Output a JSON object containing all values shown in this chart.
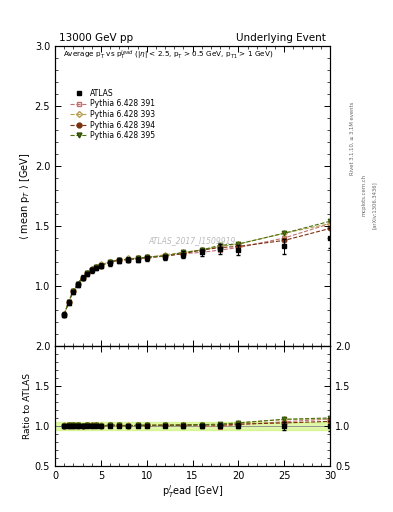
{
  "title_left": "13000 GeV pp",
  "title_right": "Underlying Event",
  "xlabel": "p$_{T}^{l}$ead [GeV]",
  "ylabel_main": "$\\langle$ mean p$_{T}$ $\\rangle$ [GeV]",
  "ylabel_ratio": "Ratio to ATLAS",
  "annotation_main": "Average p$_{T}$ vs p$_{T}^{lead}$ ($|\\eta|$ < 2.5, p$_{T}$ > 0.5 GeV, p$_{T1}$ > 1 GeV)",
  "watermark": "ATLAS_2017_I1509919",
  "rivet_label": "Rivet 3.1.10, ≥ 3.1M events",
  "arxiv_label": "[arXiv:1306.3436]",
  "mcplots_label": "mcplots.cern.ch",
  "ylim_main": [
    0.5,
    3.0
  ],
  "ylim_ratio": [
    0.5,
    2.0
  ],
  "xlim": [
    0,
    30
  ],
  "yticks_main": [
    1.0,
    1.5,
    2.0,
    2.5,
    3.0
  ],
  "yticks_ratio": [
    0.5,
    1.0,
    1.5,
    2.0
  ],
  "xticks": [
    0,
    5,
    10,
    15,
    20,
    25,
    30
  ],
  "atlas_x": [
    1.0,
    1.5,
    2.0,
    2.5,
    3.0,
    3.5,
    4.0,
    4.5,
    5.0,
    6.0,
    7.0,
    8.0,
    9.0,
    10.0,
    12.0,
    14.0,
    16.0,
    18.0,
    20.0,
    25.0,
    30.0
  ],
  "atlas_y": [
    0.76,
    0.86,
    0.95,
    1.01,
    1.07,
    1.1,
    1.13,
    1.15,
    1.17,
    1.19,
    1.21,
    1.22,
    1.22,
    1.23,
    1.24,
    1.26,
    1.28,
    1.31,
    1.3,
    1.33,
    1.4
  ],
  "atlas_yerr": [
    0.02,
    0.02,
    0.02,
    0.02,
    0.02,
    0.02,
    0.02,
    0.02,
    0.02,
    0.02,
    0.02,
    0.02,
    0.02,
    0.02,
    0.02,
    0.03,
    0.03,
    0.04,
    0.04,
    0.06,
    0.08
  ],
  "py391_x": [
    1.0,
    1.5,
    2.0,
    2.5,
    3.0,
    3.5,
    4.0,
    4.5,
    5.0,
    6.0,
    7.0,
    8.0,
    9.0,
    10.0,
    12.0,
    14.0,
    16.0,
    18.0,
    20.0,
    25.0,
    30.0
  ],
  "py391_y": [
    0.76,
    0.87,
    0.96,
    1.02,
    1.07,
    1.11,
    1.13,
    1.16,
    1.17,
    1.2,
    1.21,
    1.22,
    1.23,
    1.23,
    1.25,
    1.27,
    1.28,
    1.3,
    1.32,
    1.4,
    1.52
  ],
  "py393_x": [
    1.0,
    1.5,
    2.0,
    2.5,
    3.0,
    3.5,
    4.0,
    4.5,
    5.0,
    6.0,
    7.0,
    8.0,
    9.0,
    10.0,
    12.0,
    14.0,
    16.0,
    18.0,
    20.0,
    25.0,
    30.0
  ],
  "py393_y": [
    0.77,
    0.87,
    0.96,
    1.02,
    1.07,
    1.11,
    1.14,
    1.16,
    1.18,
    1.2,
    1.22,
    1.23,
    1.23,
    1.24,
    1.26,
    1.28,
    1.3,
    1.33,
    1.35,
    1.44,
    1.52
  ],
  "py394_x": [
    1.0,
    1.5,
    2.0,
    2.5,
    3.0,
    3.5,
    4.0,
    4.5,
    5.0,
    6.0,
    7.0,
    8.0,
    9.0,
    10.0,
    12.0,
    14.0,
    16.0,
    18.0,
    20.0,
    25.0,
    30.0
  ],
  "py394_y": [
    0.76,
    0.87,
    0.96,
    1.02,
    1.07,
    1.11,
    1.14,
    1.16,
    1.17,
    1.2,
    1.22,
    1.22,
    1.23,
    1.24,
    1.25,
    1.27,
    1.3,
    1.32,
    1.33,
    1.38,
    1.48
  ],
  "py395_x": [
    1.0,
    1.5,
    2.0,
    2.5,
    3.0,
    3.5,
    4.0,
    4.5,
    5.0,
    6.0,
    7.0,
    8.0,
    9.0,
    10.0,
    12.0,
    14.0,
    16.0,
    18.0,
    20.0,
    25.0,
    30.0
  ],
  "py395_y": [
    0.76,
    0.87,
    0.96,
    1.02,
    1.07,
    1.11,
    1.13,
    1.16,
    1.17,
    1.2,
    1.22,
    1.22,
    1.23,
    1.24,
    1.25,
    1.28,
    1.3,
    1.34,
    1.35,
    1.44,
    1.54
  ],
  "color_atlas": "#000000",
  "color_391": "#c07070",
  "color_393": "#b8a050",
  "color_394": "#7b3010",
  "color_395": "#4a7010",
  "ratio_band_color": "#bbee44",
  "ratio_band_alpha": 0.45
}
